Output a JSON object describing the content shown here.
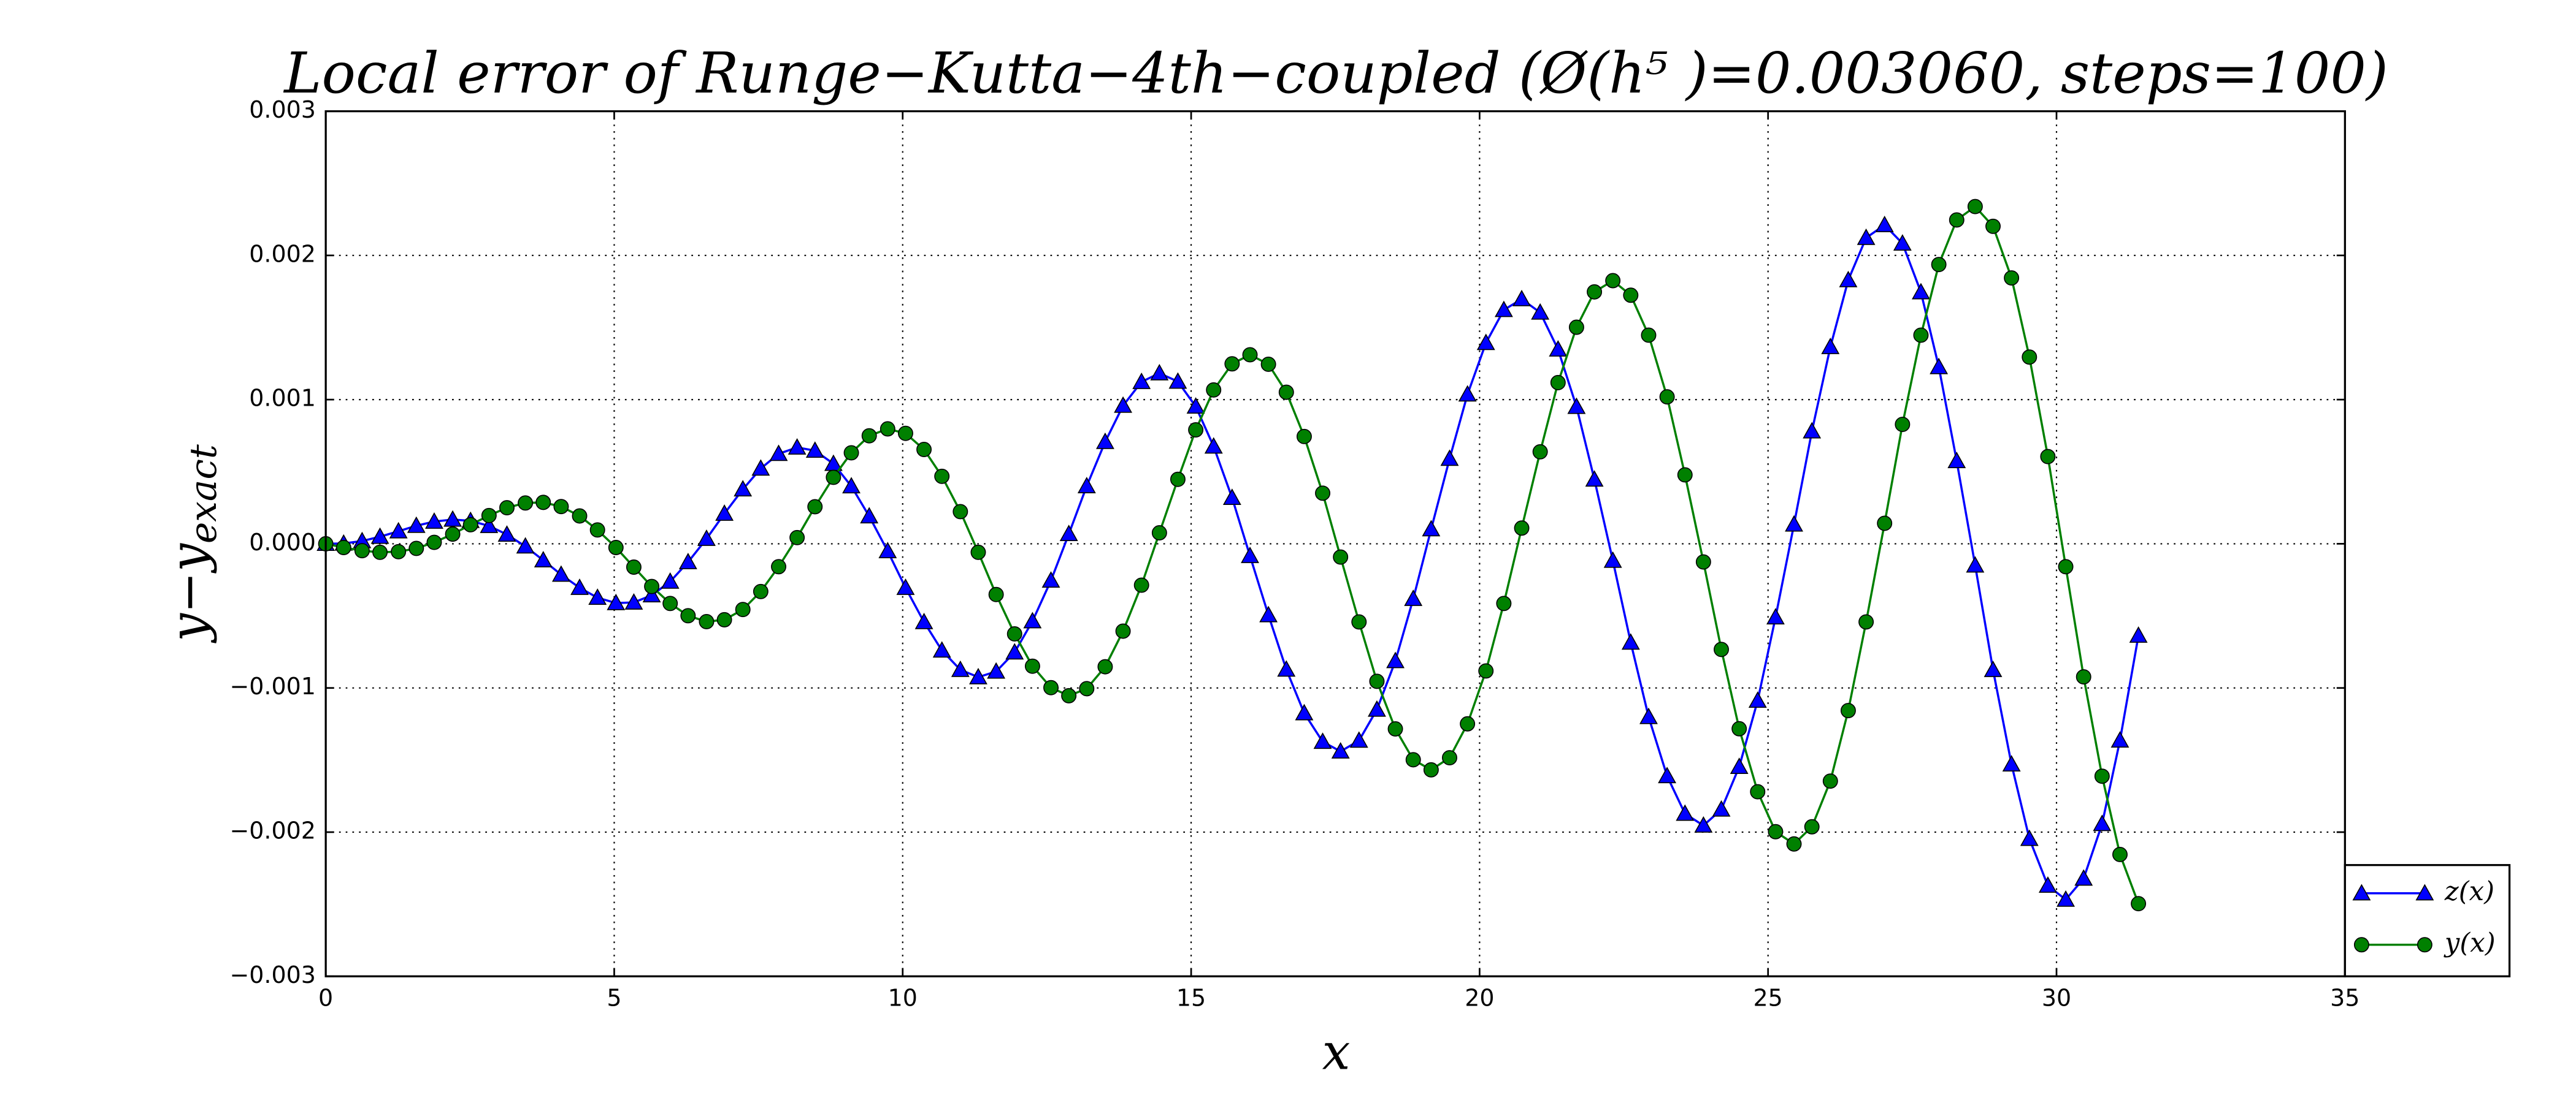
{
  "chart_data": {
    "type": "line",
    "title": "Local error of Runge−Kutta−4th−coupled (Ø(h⁵ )=0.003060, steps=100)",
    "xlabel": "x",
    "ylabel": {
      "main": "y−y",
      "sub": "exact"
    },
    "xlim": [
      0,
      35
    ],
    "xticks": [
      0,
      5,
      10,
      15,
      20,
      25,
      30,
      35
    ],
    "ylim": [
      -0.003,
      0.003
    ],
    "yticks": [
      {
        "value": -0.003,
        "label": "−0.003"
      },
      {
        "value": -0.002,
        "label": "−0.002"
      },
      {
        "value": -0.001,
        "label": "−0.001"
      },
      {
        "value": 0,
        "label": "0.000"
      },
      0.001,
      0.002,
      0.003
    ],
    "grid": true,
    "legend": "lower right",
    "x": [
      0,
      0.31,
      0.63,
      0.94,
      1.26,
      1.57,
      1.88,
      2.2,
      2.51,
      2.83,
      3.14,
      3.46,
      3.77,
      4.08,
      4.4,
      4.71,
      5.03,
      5.34,
      5.65,
      5.97,
      6.28,
      6.6,
      6.91,
      7.23,
      7.54,
      7.85,
      8.17,
      8.48,
      8.8,
      9.11,
      9.42,
      9.74,
      10.05,
      10.37,
      10.68,
      11.0,
      11.31,
      11.62,
      11.94,
      12.25,
      12.57,
      12.88,
      13.19,
      13.51,
      13.82,
      14.14,
      14.45,
      14.77,
      15.08,
      15.39,
      15.71,
      16.02,
      16.34,
      16.65,
      16.96,
      17.28,
      17.59,
      17.91,
      18.22,
      18.54,
      18.85,
      19.16,
      19.48,
      19.79,
      20.11,
      20.42,
      20.73,
      21.05,
      21.36,
      21.68,
      21.99,
      22.31,
      22.62,
      22.93,
      23.25,
      23.56,
      23.88,
      24.19,
      24.5,
      24.82,
      25.13,
      25.45,
      25.76,
      26.08,
      26.39,
      26.7,
      27.02,
      27.33,
      27.65,
      27.96,
      28.27,
      28.59,
      28.9,
      29.22,
      29.53,
      29.85,
      30.16,
      30.47,
      30.79,
      31.1,
      31.42
    ],
    "series": [
      {
        "name": "z(x)",
        "color": "#0000ff",
        "marker": "triangle",
        "values": [
          0,
          2e-06,
          1.9e-05,
          4.9e-05,
          8.7e-05,
          0.000125,
          0.000154,
          0.000168,
          0.000159,
          0.000124,
          6.4e-05,
          -1.8e-05,
          -0.000114,
          -0.000214,
          -0.000305,
          -0.000374,
          -0.000411,
          -0.000407,
          -0.000357,
          -0.000262,
          -0.000127,
          3.5e-05,
          0.000209,
          0.000378,
          0.000522,
          0.000624,
          0.000668,
          0.000646,
          0.000555,
          0.000399,
          0.000191,
          -5.1e-05,
          -0.000305,
          -0.000543,
          -0.00074,
          -0.000874,
          -0.000925,
          -0.000886,
          -0.000753,
          -0.000537,
          -0.000255,
          6.8e-05,
          0.0004,
          0.000707,
          0.000958,
          0.001123,
          0.001183,
          0.001125,
          0.000952,
          0.000675,
          0.000319,
          -8.4e-05,
          -0.000495,
          -0.000872,
          -0.001175,
          -0.001373,
          -0.00144,
          -0.001365,
          -0.00115,
          -0.000813,
          -0.000382,
          0.000101,
          0.00059,
          0.001036,
          0.001393,
          0.001622,
          0.001697,
          0.001604,
          0.001348,
          0.00095,
          0.000446,
          -0.000117,
          -0.000685,
          -0.001201,
          -0.001611,
          -0.001872,
          -0.001954,
          -0.001843,
          -0.001547,
          -0.001088,
          -0.00051,
          0.000134,
          0.00078,
          0.001365,
          0.001829,
          0.002122,
          0.002211,
          0.002083,
          0.001745,
          0.001226,
          0.000574,
          -0.00015,
          -0.000875,
          -0.00153,
          -0.002046,
          -0.002371,
          -0.002468,
          -0.002322,
          -0.001943,
          -0.001364,
          -0.000637
        ]
      },
      {
        "name": "y(x)",
        "color": "#008000",
        "marker": "circle",
        "values": [
          0,
          -2.6e-05,
          -4.8e-05,
          -5.9e-05,
          -5.5e-05,
          -3.2e-05,
          1e-05,
          6.7e-05,
          0.000132,
          0.000196,
          0.00025,
          0.000283,
          0.000287,
          0.000258,
          0.000193,
          9.6e-05,
          -2.6e-05,
          -0.000162,
          -0.000296,
          -0.000414,
          -0.000499,
          -0.00054,
          -0.000527,
          -0.000456,
          -0.000331,
          -0.000159,
          4.3e-05,
          0.000257,
          0.000461,
          0.000631,
          0.000749,
          0.000797,
          0.000766,
          0.000654,
          0.000468,
          0.000223,
          -5.9e-05,
          -0.000352,
          -0.000625,
          -0.000849,
          -0.000998,
          -0.001054,
          -0.001005,
          -0.000853,
          -0.000606,
          -0.000287,
          7.6e-05,
          0.000447,
          0.00079,
          0.001067,
          0.001248,
          0.001311,
          0.001245,
          0.001051,
          0.000744,
          0.000351,
          -9.2e-05,
          -0.000542,
          -0.000954,
          -0.001284,
          -0.001498,
          -0.001568,
          -0.001484,
          -0.001249,
          -0.000882,
          -0.000414,
          0.000109,
          0.000638,
          0.001118,
          0.001502,
          0.001747,
          0.001825,
          0.001724,
          0.001447,
          0.001019,
          0.000478,
          -0.000126,
          -0.000733,
          -0.001283,
          -0.00172,
          -0.001997,
          -0.002082,
          -0.001963,
          -0.001646,
          -0.001157,
          -0.000542,
          0.000142,
          0.000828,
          0.001447,
          0.001937,
          0.002246,
          0.002339,
          0.002202,
          0.001844,
          0.001295,
          0.000605,
          -0.000159,
          -0.000923,
          -0.001612,
          -0.002155,
          -0.002496
        ]
      }
    ]
  }
}
